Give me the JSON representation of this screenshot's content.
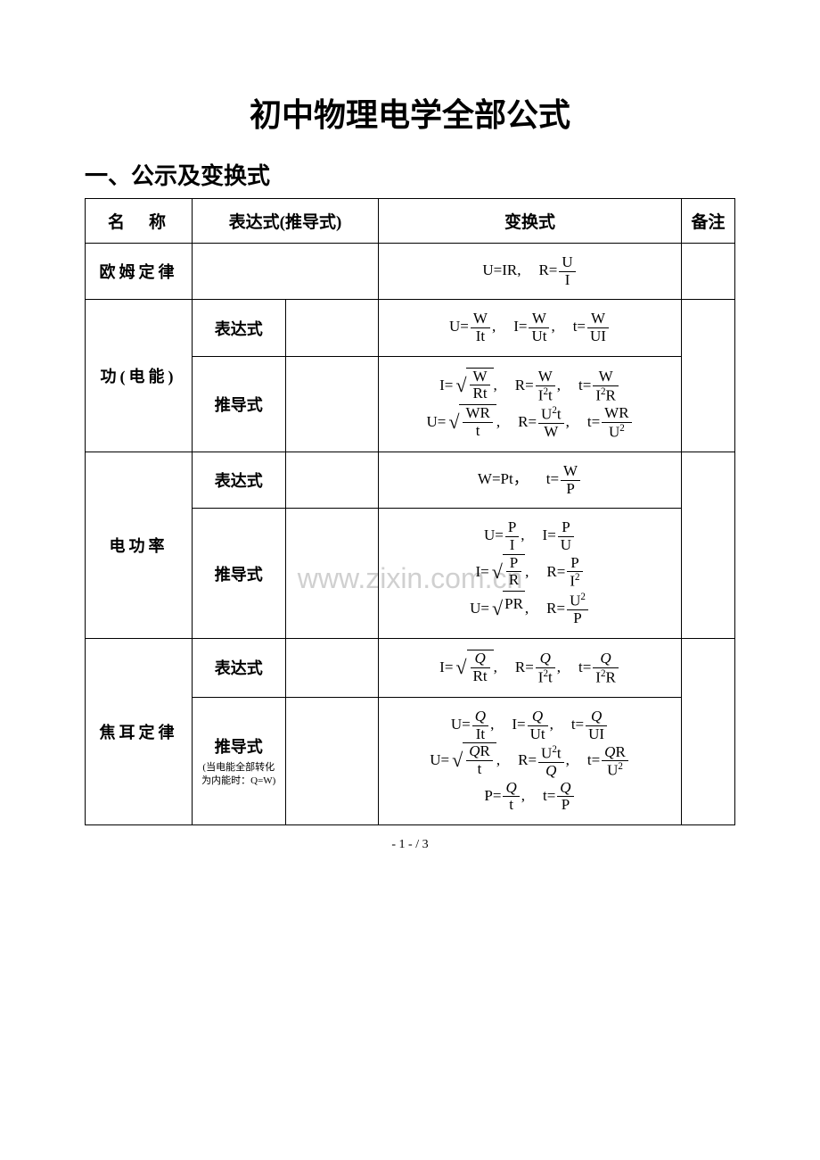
{
  "title": "初中物理电学全部公式",
  "section_header": "一、公示及变换式",
  "watermark": "www.zixin.com.cn",
  "page_number": "- 1 -  / 3",
  "colors": {
    "text": "#000000",
    "background": "#ffffff",
    "border": "#000000",
    "watermark": "#d0d0d0"
  },
  "table": {
    "headers": {
      "name": "名　称",
      "expression": "表达式(推导式)",
      "transform": "变换式",
      "note": "备注"
    },
    "rows": [
      {
        "name": "欧姆定律",
        "type": "",
        "transform_html": "U=IR,<span class=\"sp\"></span>R=<span class=\"frac\"><span class=\"num\">U</span><span class=\"den\">I</span></span>"
      },
      {
        "name": "功(电能)",
        "subrows": [
          {
            "type": "表达式",
            "transform_html": "U=<span class=\"frac\"><span class=\"num\">W</span><span class=\"den\">It</span></span>,<span class=\"sp\"></span>I=<span class=\"frac\"><span class=\"num\">W</span><span class=\"den\">Ut</span></span>,<span class=\"sp\"></span>t=<span class=\"frac\"><span class=\"num\">W</span><span class=\"den\">UI</span></span>"
          },
          {
            "type": "推导式",
            "transform_html": "I=<span class=\"sqrt\"><span class=\"radicand\"><span class=\"frac\"><span class=\"num\">W</span><span class=\"den\">Rt</span></span></span></span>,<span class=\"sp\"></span>R=<span class=\"frac\"><span class=\"num\">W</span><span class=\"den\">I<sup>2</sup>t</span></span>,<span class=\"sp\"></span>t=<span class=\"frac\"><span class=\"num\">W</span><span class=\"den\">I<sup>2</sup>R</span></span><br>U=<span class=\"sqrt\"><span class=\"radicand\"><span class=\"frac\"><span class=\"num\">WR</span><span class=\"den\">t</span></span></span></span>,<span class=\"sp\"></span>R=<span class=\"frac\"><span class=\"num\">U<sup>2</sup>t</span><span class=\"den\">W</span></span>,<span class=\"sp\"></span>t=<span class=\"frac\"><span class=\"num\">WR</span><span class=\"den\">U<sup>2</sup></span></span>"
          }
        ]
      },
      {
        "name": "电功率",
        "subrows": [
          {
            "type": "表达式",
            "transform_html": "W=Pt，<span class=\"sp\"></span>t=<span class=\"frac\"><span class=\"num\">W</span><span class=\"den\">P</span></span>"
          },
          {
            "type": "推导式",
            "transform_html": "U=<span class=\"frac\"><span class=\"num\">P</span><span class=\"den\">I</span></span>,<span class=\"sp\"></span>I=<span class=\"frac\"><span class=\"num\">P</span><span class=\"den\">U</span></span><br>I=<span class=\"sqrt\"><span class=\"radicand\"><span class=\"frac\"><span class=\"num\">P</span><span class=\"den\">R</span></span></span></span>,<span class=\"sp\"></span>R=<span class=\"frac\"><span class=\"num\">P</span><span class=\"den\">I<sup>2</sup></span></span><br>U=<span class=\"sqrt\"><span class=\"radicand\">PR</span></span>,<span class=\"sp\"></span>R=<span class=\"frac\"><span class=\"num\">U<sup>2</sup></span><span class=\"den\">P</span></span>"
          }
        ]
      },
      {
        "name": "焦耳定律",
        "subrows": [
          {
            "type": "表达式",
            "transform_html": "I=<span class=\"sqrt\"><span class=\"radicand\"><span class=\"frac\"><span class=\"num\"><span class=\"italic-q\">Q</span></span><span class=\"den\">Rt</span></span></span></span>,<span class=\"sp\"></span>R=<span class=\"frac\"><span class=\"num\"><span class=\"italic-q\">Q</span></span><span class=\"den\">I<sup>2</sup>t</span></span>,<span class=\"sp\"></span>t=<span class=\"frac\"><span class=\"num\"><span class=\"italic-q\">Q</span></span><span class=\"den\">I<sup>2</sup>R</span></span>"
          },
          {
            "type": "推导式",
            "type_note": "(当电能全部转化为内能时：Q=W)",
            "transform_html": "U=<span class=\"frac\"><span class=\"num\"><span class=\"italic-q\">Q</span></span><span class=\"den\">It</span></span>,<span class=\"sp\"></span>I=<span class=\"frac\"><span class=\"num\"><span class=\"italic-q\">Q</span></span><span class=\"den\">Ut</span></span>,<span class=\"sp\"></span>t=<span class=\"frac\"><span class=\"num\"><span class=\"italic-q\">Q</span></span><span class=\"den\">UI</span></span><br>U=<span class=\"sqrt\"><span class=\"radicand\"><span class=\"frac\"><span class=\"num\"><span class=\"italic-q\">Q</span>R</span><span class=\"den\">t</span></span></span></span>,<span class=\"sp\"></span>R=<span class=\"frac\"><span class=\"num\">U<sup>2</sup>t</span><span class=\"den\"><span class=\"italic-q\">Q</span></span></span>,<span class=\"sp\"></span>t=<span class=\"frac\"><span class=\"num\"><span class=\"italic-q\">Q</span>R</span><span class=\"den\">U<sup>2</sup></span></span><br>P=<span class=\"frac\"><span class=\"num\"><span class=\"italic-q\">Q</span></span><span class=\"den\">t</span></span>,<span class=\"sp\"></span>t=<span class=\"frac\"><span class=\"num\"><span class=\"italic-q\">Q</span></span><span class=\"den\">P</span></span>"
          }
        ]
      }
    ]
  }
}
